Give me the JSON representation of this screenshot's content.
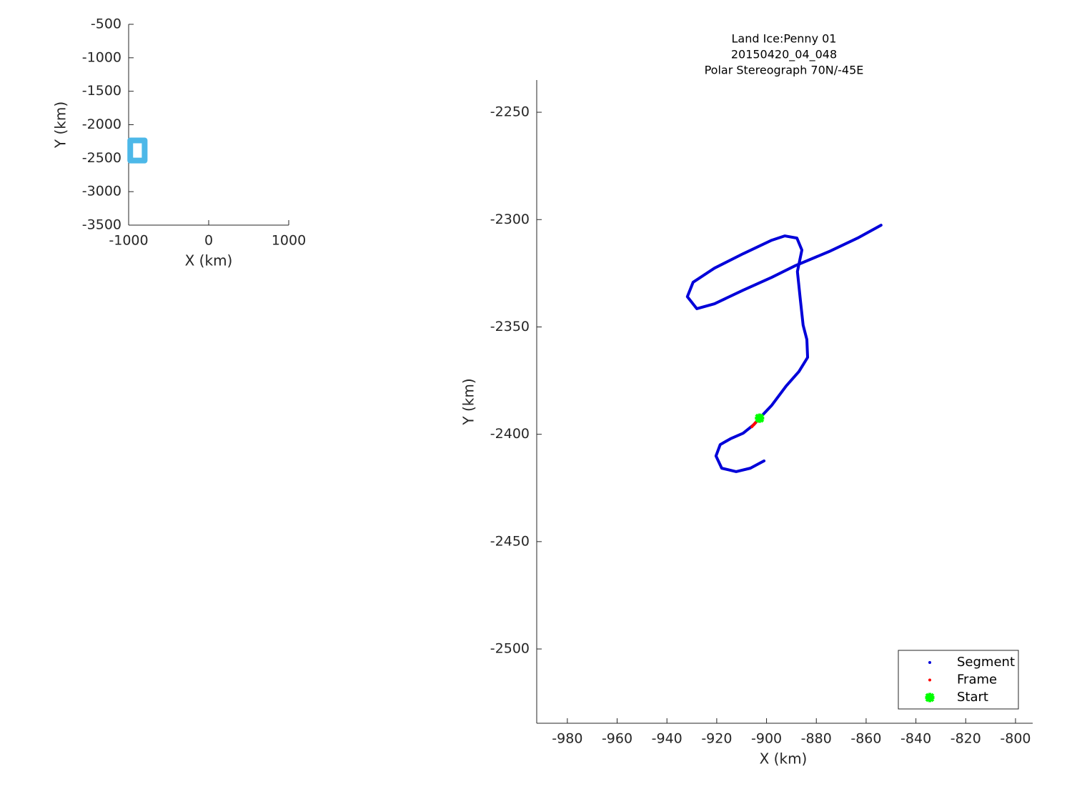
{
  "chart_data": [
    {
      "type": "line",
      "xlabel": "X (km)",
      "ylabel": "Y (km)",
      "xlim": [
        -1000,
        1000
      ],
      "ylim": [
        -3500,
        -500
      ],
      "xticks": [
        -1000,
        0,
        1000
      ],
      "yticks": [
        -3500,
        -3000,
        -2500,
        -2000,
        -1500,
        -1000,
        -500
      ],
      "series": [
        {
          "color": "#4db8e8",
          "mode": "lines",
          "x": [
            -980,
            -800,
            -800,
            -980,
            -980
          ],
          "values": [
            -2235,
            -2235,
            -2535,
            -2535,
            -2235
          ]
        }
      ]
    },
    {
      "type": "line",
      "title": [
        "Land Ice:Penny 01",
        "20150420_04_048",
        "Polar Stereograph 70N/-45E"
      ],
      "xlabel": "X (km)",
      "ylabel": "Y (km)",
      "xlim": [
        -992.3,
        -793.1
      ],
      "ylim": [
        -2534.6,
        -2235
      ],
      "xticks": [
        -980,
        -960,
        -940,
        -920,
        -900,
        -880,
        -860,
        -840,
        -820,
        -800
      ],
      "yticks": [
        -2500,
        -2450,
        -2400,
        -2350,
        -2300,
        -2250
      ],
      "legend": "southeast",
      "series": [
        {
          "name": "Segment",
          "color": "#0000d9",
          "mode": "lines",
          "x": [
            -901.0,
            -906.5,
            -912.2,
            -918.0,
            -920.3,
            -918.6,
            -914.5,
            -909.4,
            -905.1,
            -902.8,
            -897.9,
            -892.1,
            -887.0,
            -883.5,
            -883.8,
            -885.3,
            -886.4,
            -887.6,
            -885.8,
            -887.8,
            -892.7,
            -897.9,
            -909.4,
            -920.9,
            -929.5,
            -931.8,
            -928.0,
            -920.9,
            -909.4,
            -897.9,
            -888.7,
            -874.9,
            -863.4,
            -854.0
          ],
          "values": [
            -2412.4,
            -2415.8,
            -2417.4,
            -2415.8,
            -2410.1,
            -2404.8,
            -2402.1,
            -2399.5,
            -2395.5,
            -2392.5,
            -2386.5,
            -2377.5,
            -2370.8,
            -2364.2,
            -2355.9,
            -2349.2,
            -2337.5,
            -2324.2,
            -2314.2,
            -2308.6,
            -2307.6,
            -2309.6,
            -2315.9,
            -2322.6,
            -2329.2,
            -2335.9,
            -2341.5,
            -2339.2,
            -2332.9,
            -2326.9,
            -2321.6,
            -2314.9,
            -2308.6,
            -2302.6
          ]
        },
        {
          "name": "Frame",
          "color": "#ff0000",
          "mode": "lines",
          "x": [
            -905.9,
            -902.8
          ],
          "values": [
            -2396.5,
            -2392.5
          ]
        },
        {
          "name": "Start",
          "color": "#00ff00",
          "mode": "markers",
          "x": [
            -902.8
          ],
          "values": [
            -2392.5
          ]
        }
      ]
    }
  ]
}
